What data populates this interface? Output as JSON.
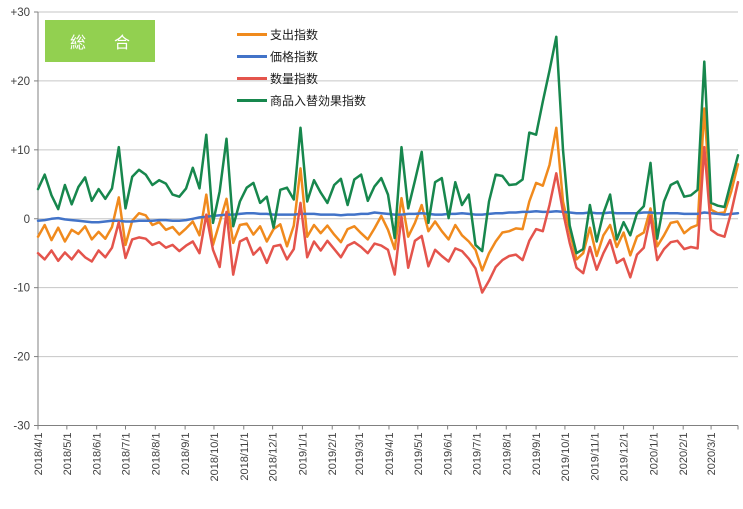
{
  "badge": {
    "label": "総　合",
    "bg_color": "#92D050",
    "text_color": "#FFFFFF"
  },
  "y_axis": {
    "tick_labels": [
      "+30",
      "+20",
      "+10",
      "0",
      "-10",
      "-20",
      "-30"
    ],
    "tick_values": [
      30,
      20,
      10,
      0,
      -10,
      -20,
      -30
    ]
  },
  "x_axis": {
    "labels": [
      "2018/4/1",
      "2018/5/1",
      "2018/6/1",
      "2018/7/1",
      "2018/8/1",
      "2018/9/1",
      "2018/10/1",
      "2018/11/1",
      "2018/12/1",
      "2019/1/1",
      "2019/2/1",
      "2019/3/1",
      "2019/4/1",
      "2019/5/1",
      "2019/6/1",
      "2019/7/1",
      "2019/8/1",
      "2019/9/1",
      "2019/10/1",
      "2019/11/1",
      "2019/12/1",
      "2020/1/1",
      "2020/2/1",
      "2020/3/1"
    ]
  },
  "colors": {
    "grid": "#C6C6C6",
    "axis": "#808080",
    "tick_text": "#404040"
  },
  "chart_data": {
    "type": "line",
    "title": "総合",
    "x_start": "2018/4/1",
    "x_end": "2020/3/29",
    "x_step_days": 7,
    "n_points": 105,
    "ylim": [
      -30,
      30
    ],
    "grid": true,
    "legend_position": "top-left-inside",
    "series": [
      {
        "name": "支出指数",
        "color": "#F08A1D",
        "values": [
          -2.6,
          -0.9,
          -3.1,
          -1.3,
          -3.3,
          -1.6,
          -2.2,
          -1.1,
          -3.0,
          -1.9,
          -2.9,
          -1.2,
          3.1,
          -3.8,
          -0.3,
          0.8,
          0.5,
          -0.9,
          -0.5,
          -1.6,
          -1.2,
          -2.3,
          -1.4,
          -0.4,
          -2.4,
          3.5,
          -3.8,
          -0.5,
          2.9,
          -3.5,
          -0.9,
          -0.7,
          -2.3,
          -1.1,
          -3.3,
          -1.5,
          -0.8,
          -4.0,
          -1.0,
          7.3,
          -2.6,
          -0.9,
          -2.1,
          -1.0,
          -2.3,
          -3.4,
          -1.5,
          -1.1,
          -2.1,
          -3.0,
          -1.4,
          0.4,
          -1.6,
          -4.4,
          3.0,
          -2.6,
          -0.6,
          2.0,
          -1.8,
          -0.4,
          -1.8,
          -3.0,
          -0.9,
          -2.4,
          -3.3,
          -4.5,
          -7.5,
          -5.0,
          -3.3,
          -2.0,
          -1.8,
          -1.4,
          -1.5,
          2.5,
          5.2,
          4.8,
          7.8,
          13.2,
          2.5,
          -1.8,
          -5.9,
          -5.0,
          -1.3,
          -5.4,
          -2.4,
          -0.9,
          -4.1,
          -2.0,
          -5.3,
          -2.6,
          -2.0,
          1.5,
          -4.0,
          -2.4,
          -0.6,
          -0.4,
          -2.1,
          -1.3,
          -0.9,
          16.0,
          1.3,
          0.8,
          0.9,
          4.0,
          7.9
        ]
      },
      {
        "name": "価格指数",
        "color": "#4273C8",
        "values": [
          -0.3,
          -0.2,
          0.0,
          0.1,
          -0.1,
          -0.2,
          -0.3,
          -0.4,
          -0.5,
          -0.5,
          -0.4,
          -0.3,
          -0.3,
          -0.4,
          -0.4,
          -0.3,
          -0.3,
          -0.3,
          -0.2,
          -0.2,
          -0.3,
          -0.3,
          -0.2,
          0.0,
          0.2,
          0.3,
          0.4,
          0.5,
          0.6,
          0.6,
          0.7,
          0.8,
          0.8,
          0.7,
          0.7,
          0.6,
          0.6,
          0.6,
          0.6,
          0.7,
          0.7,
          0.7,
          0.6,
          0.6,
          0.6,
          0.5,
          0.6,
          0.6,
          0.7,
          0.7,
          0.9,
          0.8,
          0.7,
          0.6,
          0.6,
          0.7,
          0.7,
          0.8,
          0.7,
          0.6,
          0.6,
          0.7,
          0.7,
          0.8,
          0.7,
          0.6,
          0.6,
          0.7,
          0.8,
          0.8,
          0.9,
          0.9,
          1.0,
          1.0,
          1.1,
          1.0,
          1.0,
          1.1,
          1.0,
          0.9,
          0.8,
          0.8,
          0.9,
          0.8,
          0.8,
          0.9,
          0.8,
          0.8,
          0.8,
          0.8,
          0.9,
          0.9,
          0.8,
          0.8,
          0.8,
          0.8,
          0.7,
          0.7,
          0.7,
          0.9,
          0.8,
          0.7,
          0.6,
          0.7,
          0.8
        ]
      },
      {
        "name": "数量指数",
        "color": "#E4544C",
        "values": [
          -5.0,
          -5.9,
          -4.6,
          -6.1,
          -4.9,
          -5.9,
          -4.6,
          -5.6,
          -6.2,
          -4.6,
          -5.6,
          -4.2,
          -0.5,
          -5.7,
          -3.0,
          -2.7,
          -2.9,
          -3.8,
          -3.4,
          -4.2,
          -3.8,
          -4.7,
          -3.9,
          -3.3,
          -5.0,
          0.6,
          -4.5,
          -7.0,
          1.0,
          -8.1,
          -3.3,
          -2.8,
          -5.2,
          -4.2,
          -6.4,
          -4.0,
          -3.8,
          -5.9,
          -4.4,
          2.3,
          -5.6,
          -3.3,
          -4.6,
          -3.2,
          -4.4,
          -5.6,
          -3.9,
          -3.4,
          -4.1,
          -5.0,
          -3.6,
          -3.9,
          -4.5,
          -8.1,
          0.3,
          -7.1,
          -3.2,
          -2.5,
          -6.9,
          -4.5,
          -5.4,
          -6.2,
          -4.3,
          -4.7,
          -5.8,
          -7.2,
          -10.7,
          -9.0,
          -7.0,
          -6.0,
          -5.4,
          -5.2,
          -6.0,
          -3.2,
          -1.5,
          -1.8,
          2.0,
          6.6,
          1.0,
          -3.5,
          -7.1,
          -7.9,
          -4.1,
          -7.4,
          -5.0,
          -3.1,
          -6.4,
          -5.8,
          -8.5,
          -5.2,
          -4.2,
          0.4,
          -6.0,
          -4.4,
          -3.4,
          -3.2,
          -4.4,
          -4.1,
          -4.3,
          10.4,
          -1.6,
          -2.3,
          -2.6,
          1.0,
          5.3
        ]
      },
      {
        "name": "商品入替効果指数",
        "color": "#17874D",
        "values": [
          4.3,
          6.4,
          3.4,
          1.4,
          4.9,
          2.1,
          4.6,
          6.0,
          2.6,
          4.3,
          2.9,
          4.4,
          10.4,
          1.5,
          6.1,
          7.1,
          6.4,
          4.9,
          5.6,
          5.1,
          3.5,
          3.2,
          4.4,
          7.4,
          4.4,
          12.2,
          -0.6,
          4.0,
          11.6,
          -1.1,
          2.5,
          4.5,
          5.2,
          2.3,
          3.2,
          -1.3,
          4.2,
          4.5,
          2.8,
          13.2,
          2.5,
          5.6,
          3.8,
          2.3,
          4.9,
          5.8,
          2.0,
          5.7,
          6.4,
          2.6,
          4.7,
          5.9,
          3.5,
          -2.8,
          10.4,
          1.5,
          5.5,
          9.7,
          -0.6,
          5.3,
          5.9,
          0.1,
          5.3,
          2.0,
          3.5,
          -3.8,
          -4.7,
          2.5,
          6.4,
          6.2,
          4.9,
          5.0,
          5.7,
          12.5,
          12.2,
          17.0,
          21.5,
          26.4,
          10.0,
          -1.0,
          -5.0,
          -4.4,
          2.0,
          -3.3,
          0.8,
          3.5,
          -3.0,
          -0.5,
          -2.4,
          0.8,
          1.8,
          8.1,
          -2.9,
          2.5,
          4.9,
          5.4,
          3.2,
          3.4,
          4.2,
          22.8,
          2.3,
          1.9,
          1.7,
          5.5,
          9.2
        ]
      }
    ]
  }
}
